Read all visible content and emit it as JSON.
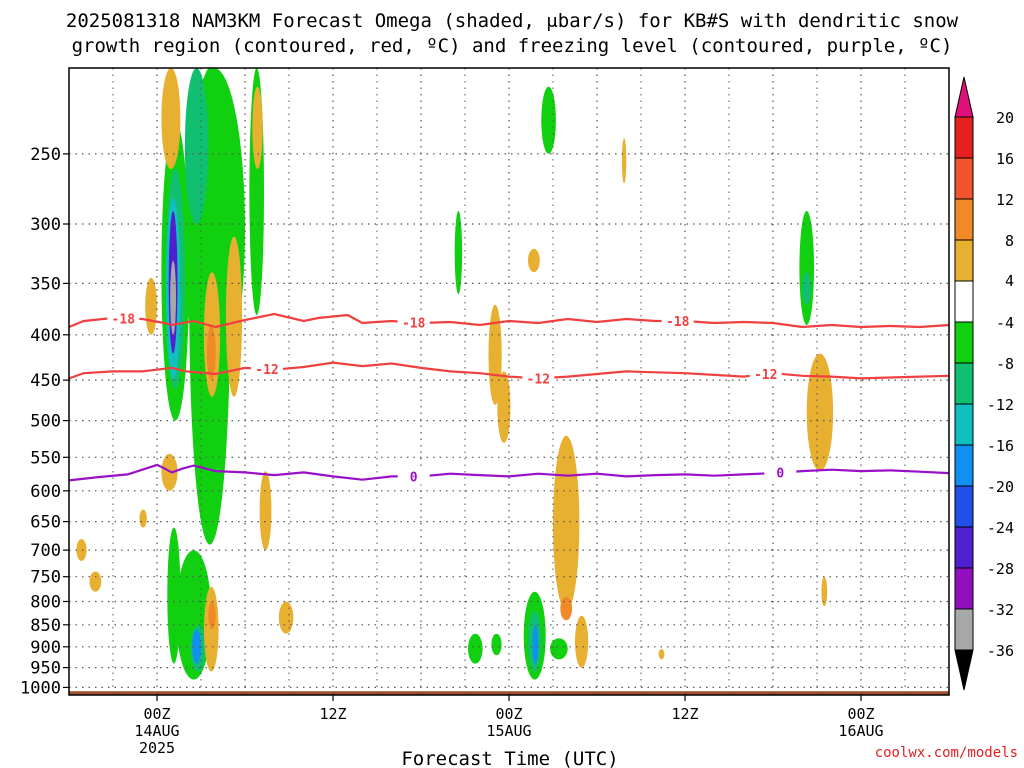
{
  "title_line1": "2025081318 NAM3KM Forecast Omega (shaded, μbar/s) for KB#S with dendritic snow",
  "title_line2": "growth region (contoured, red, ºC) and freezing level (contoured, purple, ºC)",
  "watermark": "coolwx.com/models",
  "colors": {
    "dgz": "#f04040",
    "freezing": "#9a10c8",
    "ground": "#a0522d",
    "gridline": "#555555",
    "watermark": "#e02020"
  },
  "chart_data": {
    "type": "heatmap",
    "xlabel": "Forecast Time (UTC)",
    "x_ticks": [
      {
        "hours": 0,
        "lines": [
          "00Z",
          "14AUG",
          "2025"
        ]
      },
      {
        "hours": 12,
        "lines": [
          "12Z"
        ]
      },
      {
        "hours": 24,
        "lines": [
          "00Z",
          "15AUG"
        ]
      },
      {
        "hours": 36,
        "lines": [
          "12Z"
        ]
      },
      {
        "hours": 48,
        "lines": [
          "00Z",
          "16AUG"
        ]
      }
    ],
    "xlim_hours": [
      -6,
      54
    ],
    "y_ticks": [
      250,
      300,
      350,
      400,
      450,
      500,
      550,
      600,
      650,
      700,
      750,
      800,
      850,
      900,
      950,
      1000
    ],
    "ylim_hpa": [
      200,
      1020
    ],
    "y_scale": "log",
    "ground_level_hpa": 1010,
    "colorbar": {
      "labels": [
        "20",
        "16",
        "12",
        "8",
        "4",
        "-4",
        "-8",
        "-12",
        "-16",
        "-20",
        "-24",
        "-28",
        "-32",
        "-36"
      ],
      "colors": [
        "#e62020",
        "#f05530",
        "#f08a28",
        "#e8b030",
        "#ffffff",
        "#10d010",
        "#10c070",
        "#10c0c0",
        "#1090f0",
        "#2050e8",
        "#5020d0",
        "#9010c0",
        "#a8a8a8"
      ],
      "top_cap": "#e0107a",
      "bottom_cap": "#000000"
    },
    "dgz_contours": [
      {
        "level": -18,
        "labels_at_hours": [
          -2.3,
          17.5,
          35.5
        ],
        "points": [
          [
            -6,
            392
          ],
          [
            -5,
            386
          ],
          [
            -3,
            383
          ],
          [
            -1,
            384
          ],
          [
            0.5,
            388
          ],
          [
            1,
            390
          ],
          [
            2.5,
            386
          ],
          [
            4,
            392
          ],
          [
            6,
            385
          ],
          [
            7,
            382
          ],
          [
            8,
            379
          ],
          [
            10,
            386
          ],
          [
            11,
            383
          ],
          [
            13,
            380
          ],
          [
            14,
            388
          ],
          [
            16,
            386
          ],
          [
            18,
            388
          ],
          [
            20,
            387
          ],
          [
            22,
            390
          ],
          [
            24,
            386
          ],
          [
            26,
            388
          ],
          [
            28,
            384
          ],
          [
            30,
            387
          ],
          [
            32,
            384
          ],
          [
            34,
            386
          ],
          [
            36,
            386
          ],
          [
            38,
            388
          ],
          [
            40,
            387
          ],
          [
            42,
            388
          ],
          [
            44,
            392
          ],
          [
            46,
            390
          ],
          [
            48,
            392
          ],
          [
            50,
            391
          ],
          [
            52,
            392
          ],
          [
            54,
            390
          ]
        ]
      },
      {
        "level": -12,
        "labels_at_hours": [
          7.5,
          26,
          41.5
        ],
        "points": [
          [
            -6,
            448
          ],
          [
            -5,
            442
          ],
          [
            -3,
            440
          ],
          [
            -1,
            440
          ],
          [
            0,
            438
          ],
          [
            1,
            436
          ],
          [
            2,
            440
          ],
          [
            4,
            443
          ],
          [
            6,
            436
          ],
          [
            8,
            438
          ],
          [
            10,
            435
          ],
          [
            12,
            430
          ],
          [
            14,
            434
          ],
          [
            16,
            431
          ],
          [
            18,
            436
          ],
          [
            20,
            440
          ],
          [
            22,
            442
          ],
          [
            24,
            446
          ],
          [
            26,
            448
          ],
          [
            28,
            446
          ],
          [
            30,
            443
          ],
          [
            32,
            440
          ],
          [
            34,
            441
          ],
          [
            36,
            442
          ],
          [
            38,
            444
          ],
          [
            40,
            446
          ],
          [
            42,
            442
          ],
          [
            44,
            445
          ],
          [
            46,
            446
          ],
          [
            48,
            448
          ],
          [
            50,
            447
          ],
          [
            52,
            446
          ],
          [
            54,
            445
          ]
        ]
      }
    ],
    "freezing_contours": [
      {
        "level": 0,
        "labels_at_hours": [
          17.5,
          42.5
        ],
        "points": [
          [
            -6,
            584
          ],
          [
            -4,
            579
          ],
          [
            -2,
            575
          ],
          [
            -1,
            568
          ],
          [
            0,
            561
          ],
          [
            0.5,
            566
          ],
          [
            1,
            572
          ],
          [
            1.8,
            566
          ],
          [
            2.5,
            562
          ],
          [
            4,
            570
          ],
          [
            6,
            572
          ],
          [
            8,
            576
          ],
          [
            10,
            572
          ],
          [
            12,
            578
          ],
          [
            14,
            583
          ],
          [
            16,
            578
          ],
          [
            18,
            578
          ],
          [
            20,
            574
          ],
          [
            22,
            576
          ],
          [
            24,
            578
          ],
          [
            26,
            574
          ],
          [
            28,
            577
          ],
          [
            30,
            574
          ],
          [
            32,
            578
          ],
          [
            34,
            576
          ],
          [
            36,
            575
          ],
          [
            38,
            577
          ],
          [
            40,
            575
          ],
          [
            42,
            573
          ],
          [
            44,
            570
          ],
          [
            46,
            568
          ],
          [
            48,
            570
          ],
          [
            50,
            569
          ],
          [
            52,
            571
          ],
          [
            54,
            573
          ]
        ]
      }
    ],
    "omega_features": [
      {
        "hours": [
          0.3,
          2.2
        ],
        "p": [
          230,
          500
        ],
        "value": -8
      },
      {
        "hours": [
          1.8,
          6.0
        ],
        "p": [
          200,
          460
        ],
        "value": -8
      },
      {
        "hours": [
          2.2,
          5.0
        ],
        "p": [
          200,
          690
        ],
        "value": -8
      },
      {
        "hours": [
          6.3,
          7.3
        ],
        "p": [
          200,
          380
        ],
        "value": -8
      },
      {
        "hours": [
          0.6,
          1.9
        ],
        "p": [
          260,
          460
        ],
        "value": -12
      },
      {
        "hours": [
          0.6,
          1.6
        ],
        "p": [
          280,
          450
        ],
        "value": -16
      },
      {
        "hours": [
          0.8,
          1.4
        ],
        "p": [
          290,
          420
        ],
        "value": -24
      },
      {
        "hours": [
          0.9,
          1.3
        ],
        "p": [
          330,
          400
        ],
        "value": -32
      },
      {
        "hours": [
          1.9,
          3.5
        ],
        "p": [
          200,
          300
        ],
        "value": -12
      },
      {
        "hours": [
          0.7,
          1.6
        ],
        "p": [
          660,
          940
        ],
        "value": -8
      },
      {
        "hours": [
          1.3,
          3.7
        ],
        "p": [
          700,
          980
        ],
        "value": -8
      },
      {
        "hours": [
          2.3,
          3.3
        ],
        "p": [
          850,
          960
        ],
        "value": -12
      },
      {
        "hours": [
          2.4,
          3.0
        ],
        "p": [
          860,
          940
        ],
        "value": -20
      },
      {
        "hours": [
          25.0,
          26.5
        ],
        "p": [
          780,
          980
        ],
        "value": -8
      },
      {
        "hours": [
          25.3,
          26.2
        ],
        "p": [
          820,
          960
        ],
        "value": -12
      },
      {
        "hours": [
          25.6,
          26.0
        ],
        "p": [
          850,
          940
        ],
        "value": -20
      },
      {
        "hours": [
          26.2,
          27.2
        ],
        "p": [
          210,
          250
        ],
        "value": -8
      },
      {
        "hours": [
          22.8,
          23.5
        ],
        "p": [
          870,
          920
        ],
        "value": -8
      },
      {
        "hours": [
          26.8,
          28.0
        ],
        "p": [
          880,
          930
        ],
        "value": -8
      },
      {
        "hours": [
          21.2,
          22.2
        ],
        "p": [
          870,
          940
        ],
        "value": -8
      },
      {
        "hours": [
          20.3,
          20.8
        ],
        "p": [
          290,
          360
        ],
        "value": -8
      },
      {
        "hours": [
          43.8,
          44.8
        ],
        "p": [
          290,
          390
        ],
        "value": -8
      },
      {
        "hours": [
          44.0,
          44.6
        ],
        "p": [
          340,
          370
        ],
        "value": -12
      },
      {
        "hours": [
          0.3,
          1.6
        ],
        "p": [
          200,
          260
        ],
        "value": 4
      },
      {
        "hours": [
          -0.8,
          0.0
        ],
        "p": [
          345,
          400
        ],
        "value": 4
      },
      {
        "hours": [
          0.3,
          1.4
        ],
        "p": [
          545,
          600
        ],
        "value": 4
      },
      {
        "hours": [
          3.2,
          4.3
        ],
        "p": [
          340,
          470
        ],
        "value": 4
      },
      {
        "hours": [
          3.4,
          4.0
        ],
        "p": [
          390,
          450
        ],
        "value": 8
      },
      {
        "hours": [
          4.7,
          5.8
        ],
        "p": [
          310,
          470
        ],
        "value": 4
      },
      {
        "hours": [
          6.5,
          7.2
        ],
        "p": [
          210,
          260
        ],
        "value": 4
      },
      {
        "hours": [
          7.0,
          7.8
        ],
        "p": [
          570,
          700
        ],
        "value": 4
      },
      {
        "hours": [
          3.2,
          4.2
        ],
        "p": [
          770,
          960
        ],
        "value": 4
      },
      {
        "hours": [
          3.5,
          4.0
        ],
        "p": [
          800,
          860
        ],
        "value": 8
      },
      {
        "hours": [
          8.3,
          9.3
        ],
        "p": [
          800,
          870
        ],
        "value": 4
      },
      {
        "hours": [
          -5.5,
          -4.8
        ],
        "p": [
          680,
          720
        ],
        "value": 4
      },
      {
        "hours": [
          -4.6,
          -3.8
        ],
        "p": [
          740,
          780
        ],
        "value": 4
      },
      {
        "hours": [
          -1.2,
          -0.7
        ],
        "p": [
          630,
          660
        ],
        "value": 4
      },
      {
        "hours": [
          22.6,
          23.5
        ],
        "p": [
          370,
          480
        ],
        "value": 4
      },
      {
        "hours": [
          23.2,
          24.1
        ],
        "p": [
          440,
          530
        ],
        "value": 4
      },
      {
        "hours": [
          25.3,
          26.1
        ],
        "p": [
          320,
          340
        ],
        "value": 4
      },
      {
        "hours": [
          27.0,
          28.8
        ],
        "p": [
          520,
          820
        ],
        "value": 4
      },
      {
        "hours": [
          27.5,
          28.3
        ],
        "p": [
          790,
          840
        ],
        "value": 8
      },
      {
        "hours": [
          28.5,
          29.4
        ],
        "p": [
          830,
          950
        ],
        "value": 4
      },
      {
        "hours": [
          31.7,
          32.0
        ],
        "p": [
          240,
          270
        ],
        "value": 4
      },
      {
        "hours": [
          44.3,
          46.1
        ],
        "p": [
          420,
          570
        ],
        "value": 4
      },
      {
        "hours": [
          45.3,
          45.7
        ],
        "p": [
          750,
          810
        ],
        "value": 4
      },
      {
        "hours": [
          34.2,
          34.6
        ],
        "p": [
          905,
          930
        ],
        "value": 4
      }
    ]
  }
}
